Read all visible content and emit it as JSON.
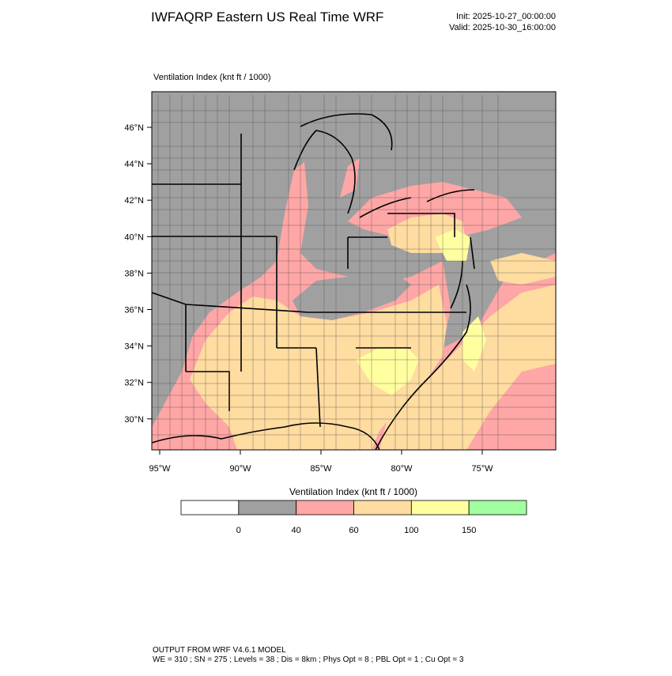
{
  "header": {
    "title": "IWFAQRP Eastern US Real Time WRF",
    "init": "Init: 2025-10-27_00:00:00",
    "valid": "Valid: 2025-10-30_16:00:00"
  },
  "map": {
    "label": "Ventilation Index   (knt ft / 1000)",
    "lat_labels": [
      "46°N",
      "44°N",
      "42°N",
      "40°N",
      "38°N",
      "36°N",
      "34°N",
      "32°N",
      "30°N"
    ],
    "lon_labels": [
      "95°W",
      "90°W",
      "85°W",
      "80°W",
      "75°W"
    ]
  },
  "legend": {
    "title": "Ventilation Index  (knt ft / 1000)",
    "colors": [
      "#ffffff",
      "#a0a0a0",
      "#ffa6a6",
      "#ffdca0",
      "#ffffa0",
      "#a0ffa0"
    ],
    "bounds": [
      0,
      40,
      60,
      100,
      150
    ]
  },
  "footer": {
    "line1": "OUTPUT FROM WRF V4.6.1 MODEL",
    "line2": "WE = 310 ; SN = 275 ; Levels = 38 ; Dis = 8km ; Phys Opt = 8 ; PBL Opt = 1 ; Cu Opt = 3"
  }
}
